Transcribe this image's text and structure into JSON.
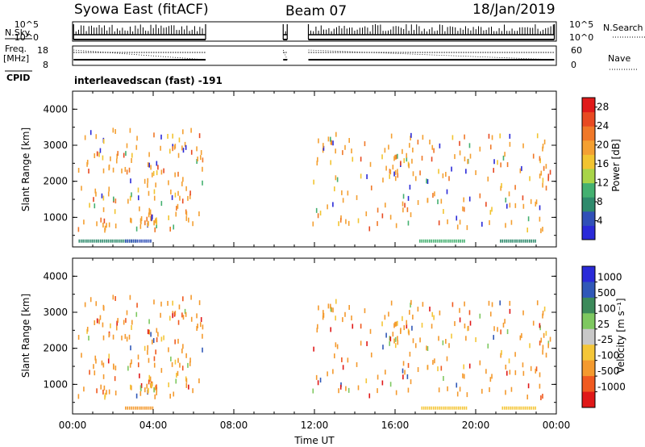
{
  "header": {
    "station": "Syowa East (fitACF)",
    "beam": "Beam 07",
    "date": "18/Jan/2019"
  },
  "panels": {
    "nsky_label": "N.Sky",
    "nsky_ticks": [
      "10^5",
      "10^0"
    ],
    "nsearch_label": "N.Search",
    "nsearch_ticks": [
      "10^5",
      "10^0"
    ],
    "freq_label_1": "Freq.",
    "freq_label_2": "[MHz]",
    "freq_ticks": [
      "18",
      "8"
    ],
    "nave_label": "Nave",
    "nave_ticks": [
      "60",
      "0"
    ],
    "cpid_label": "CPID",
    "cpid_value": "interleavedscan (fast) -191"
  },
  "colors": {
    "power": [
      "#2a2ad8",
      "#3050b8",
      "#2e8a6c",
      "#44b070",
      "#a8d448",
      "#f2c430",
      "#f4a032",
      "#f07828",
      "#e84a22",
      "#e01a1a"
    ],
    "velocity": [
      "#e01818",
      "#f05a20",
      "#f49a2e",
      "#f4c638",
      "#c8c8c8",
      "#7ec860",
      "#3c8a5a",
      "#3058b8",
      "#2a2ad8"
    ]
  },
  "chart_data": [
    {
      "type": "heatmap",
      "xlabel": "",
      "ylabel": "Slant Range [km]",
      "x_ticks": [
        "00:00",
        "04:00",
        "08:00",
        "12:00",
        "16:00",
        "20:00",
        "00:00"
      ],
      "xlim_hours": [
        0,
        24
      ],
      "ylim_km": [
        180,
        4500
      ],
      "y_ticks": [
        1000,
        2000,
        3000,
        4000
      ],
      "colorbar_label": "Power [dB]",
      "colorbar_ticks": [
        "4",
        "8",
        "12",
        "16",
        "20",
        "24",
        "28"
      ],
      "colorbar_range": [
        0,
        30
      ]
    },
    {
      "type": "heatmap",
      "xlabel": "Time UT",
      "ylabel": "Slant Range [km]",
      "x_ticks": [
        "00:00",
        "04:00",
        "08:00",
        "12:00",
        "16:00",
        "20:00",
        "00:00"
      ],
      "xlim_hours": [
        0,
        24
      ],
      "ylim_km": [
        180,
        4500
      ],
      "y_ticks": [
        1000,
        2000,
        3000,
        4000
      ],
      "colorbar_label": "Velocity [m s⁻¹]",
      "colorbar_ticks": [
        "1000",
        "500",
        "100",
        "25",
        "-25",
        "-100",
        "-500",
        "-1000"
      ]
    }
  ],
  "data_gaps_hours": [
    [
      6.6,
      10.4
    ],
    [
      10.7,
      11.7
    ]
  ]
}
